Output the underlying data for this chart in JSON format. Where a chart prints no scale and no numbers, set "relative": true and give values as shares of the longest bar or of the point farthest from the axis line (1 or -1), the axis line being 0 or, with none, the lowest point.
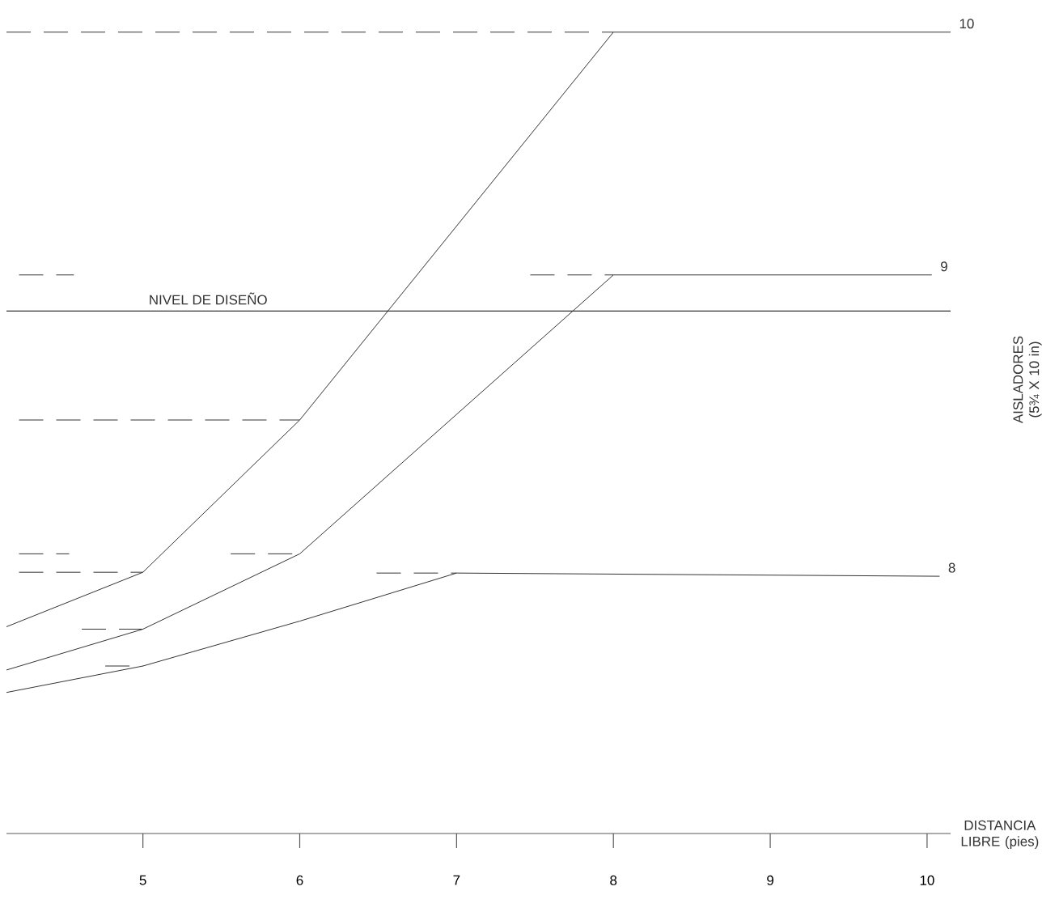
{
  "chart_data": {
    "type": "line",
    "relative": true,
    "xlabel": "DISTANCIA LIBRE (pies)",
    "ylabel": "AISLADORES (5¾ X 10 in)",
    "xlim": [
      4.13,
      10.15
    ],
    "xticks": [
      5,
      6,
      7,
      8,
      9,
      10
    ],
    "ref_lines": [
      {
        "axis": "y",
        "value": 0.652,
        "label": "NIVEL DE DISEÑO",
        "color": "#333333"
      }
    ],
    "series": [
      {
        "name": "10",
        "color": "#333333",
        "x": [
          4.13,
          5,
          6,
          8,
          10.15
        ],
        "values": [
          0.258,
          0.326,
          0.516,
          1,
          1
        ]
      },
      {
        "name": "9",
        "color": "#333333",
        "x": [
          4.13,
          5,
          6,
          8,
          10.03
        ],
        "values": [
          0.204,
          0.255,
          0.349,
          0.697,
          0.697
        ]
      },
      {
        "name": "8",
        "color": "#333333",
        "x": [
          4.13,
          5,
          6,
          7,
          10.08
        ],
        "values": [
          0.176,
          0.209,
          0.265,
          0.325,
          0.321
        ]
      },
      {
        "color": "#333333",
        "line_style": "dashed",
        "x": [
          4.13,
          8
        ],
        "values": [
          1,
          1
        ]
      },
      {
        "color": "#333333",
        "line_style": "dashed",
        "x": [
          4.21,
          4.56,
          6,
          7.47,
          8
        ],
        "values": [
          0.697,
          0.697,
          null,
          0.697,
          0.697
        ]
      },
      {
        "color": "#333333",
        "line_style": "dashed",
        "x": [
          4.21,
          6
        ],
        "values": [
          0.516,
          0.516
        ]
      },
      {
        "color": "#333333",
        "line_style": "dashed",
        "x": [
          4.21,
          4.53,
          5,
          5.56,
          6
        ],
        "values": [
          0.349,
          0.349,
          null,
          0.349,
          0.349
        ]
      },
      {
        "color": "#333333",
        "line_style": "dashed",
        "x": [
          4.21,
          5
        ],
        "values": [
          0.326,
          0.326
        ]
      },
      {
        "color": "#333333",
        "line_style": "dashed",
        "x": [
          4.61,
          5
        ],
        "values": [
          0.255,
          0.255
        ]
      },
      {
        "color": "#333333",
        "line_style": "dashed",
        "x": [
          4.76,
          5
        ],
        "values": [
          0.209,
          0.209
        ]
      },
      {
        "color": "#333333",
        "line_style": "dashed",
        "x": [
          6.49,
          7
        ],
        "values": [
          0.325,
          0.325
        ]
      }
    ]
  }
}
